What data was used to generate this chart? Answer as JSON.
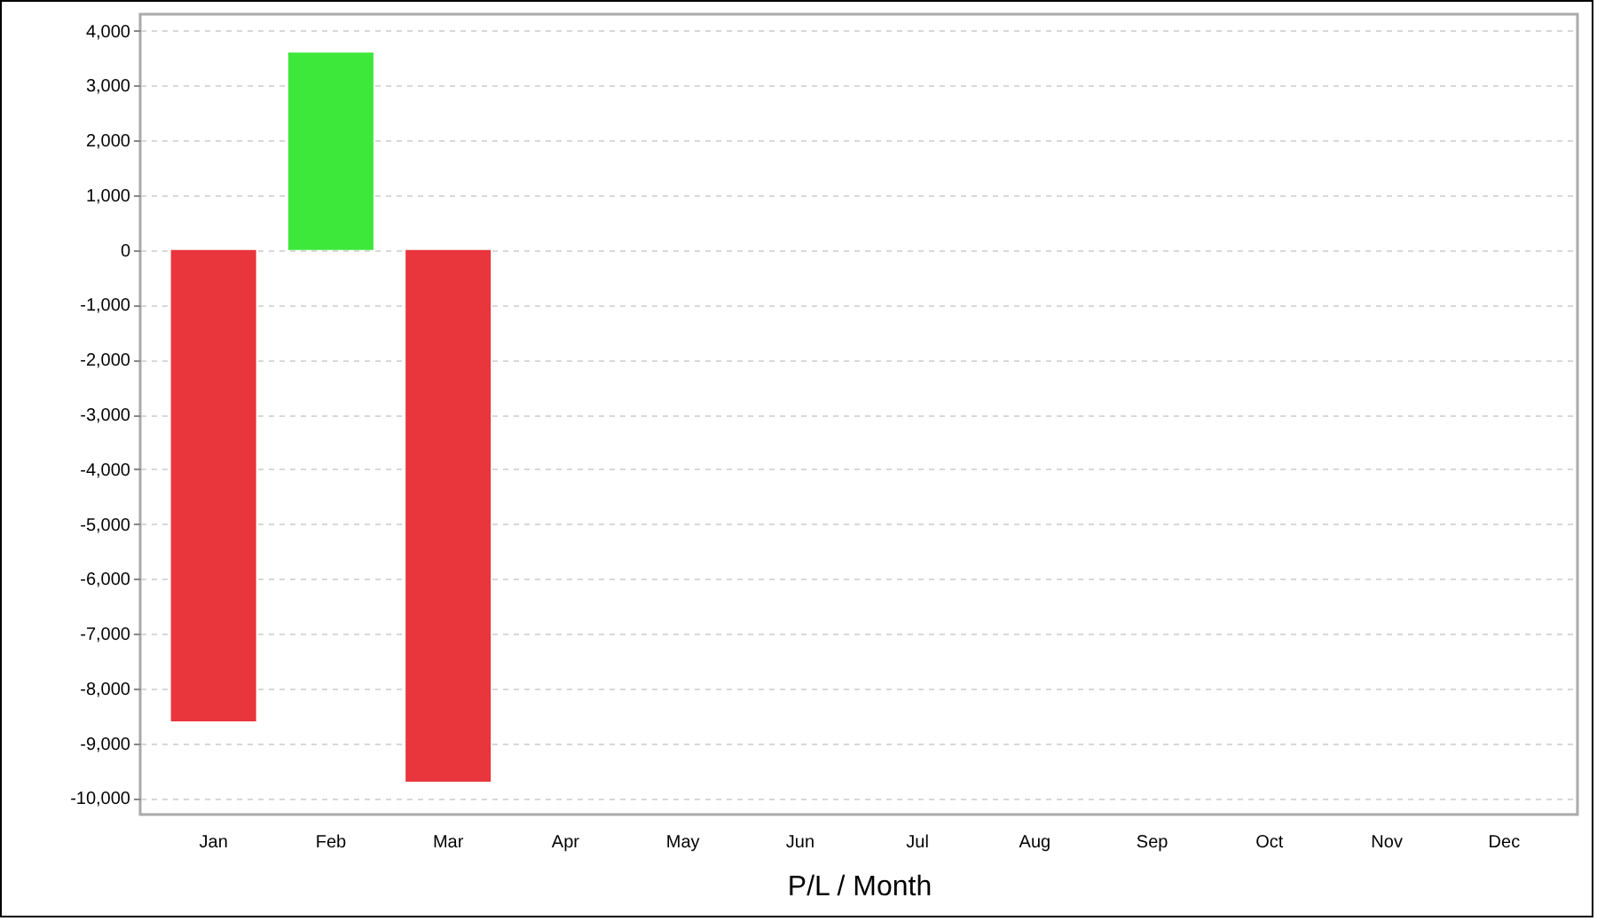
{
  "chart_data": {
    "type": "bar",
    "xlabel": "P/L / Month",
    "categories": [
      "Jan",
      "Feb",
      "Mar",
      "Apr",
      "May",
      "Jun",
      "Jul",
      "Aug",
      "Sep",
      "Oct",
      "Nov",
      "Dec"
    ],
    "values": [
      -8600,
      3600,
      -9700,
      null,
      null,
      null,
      null,
      null,
      null,
      null,
      null,
      null
    ],
    "colors": [
      "#e8363c",
      "#3de83a",
      "#e8363c",
      null,
      null,
      null,
      null,
      null,
      null,
      null,
      null,
      null
    ],
    "ylim": [
      -10300,
      4300
    ],
    "yticks": [
      {
        "value": -10000,
        "label": "-10,000"
      },
      {
        "value": -9000,
        "label": "-9,000"
      },
      {
        "value": -8000,
        "label": "-8,000"
      },
      {
        "value": -7000,
        "label": "-7,000"
      },
      {
        "value": -6000,
        "label": "-6,000"
      },
      {
        "value": -5000,
        "label": "-5,000"
      },
      {
        "value": -4000,
        "label": "-4,000"
      },
      {
        "value": -3000,
        "label": "-3,000"
      },
      {
        "value": -2000,
        "label": "-2,000"
      },
      {
        "value": -1000,
        "label": "-1,000"
      },
      0,
      {
        "value": 1000,
        "label": "1,000"
      },
      {
        "value": 2000,
        "label": "2,000"
      },
      {
        "value": 3000,
        "label": "3,000"
      },
      {
        "value": 4000,
        "label": "4,000"
      }
    ],
    "grid": "y"
  }
}
